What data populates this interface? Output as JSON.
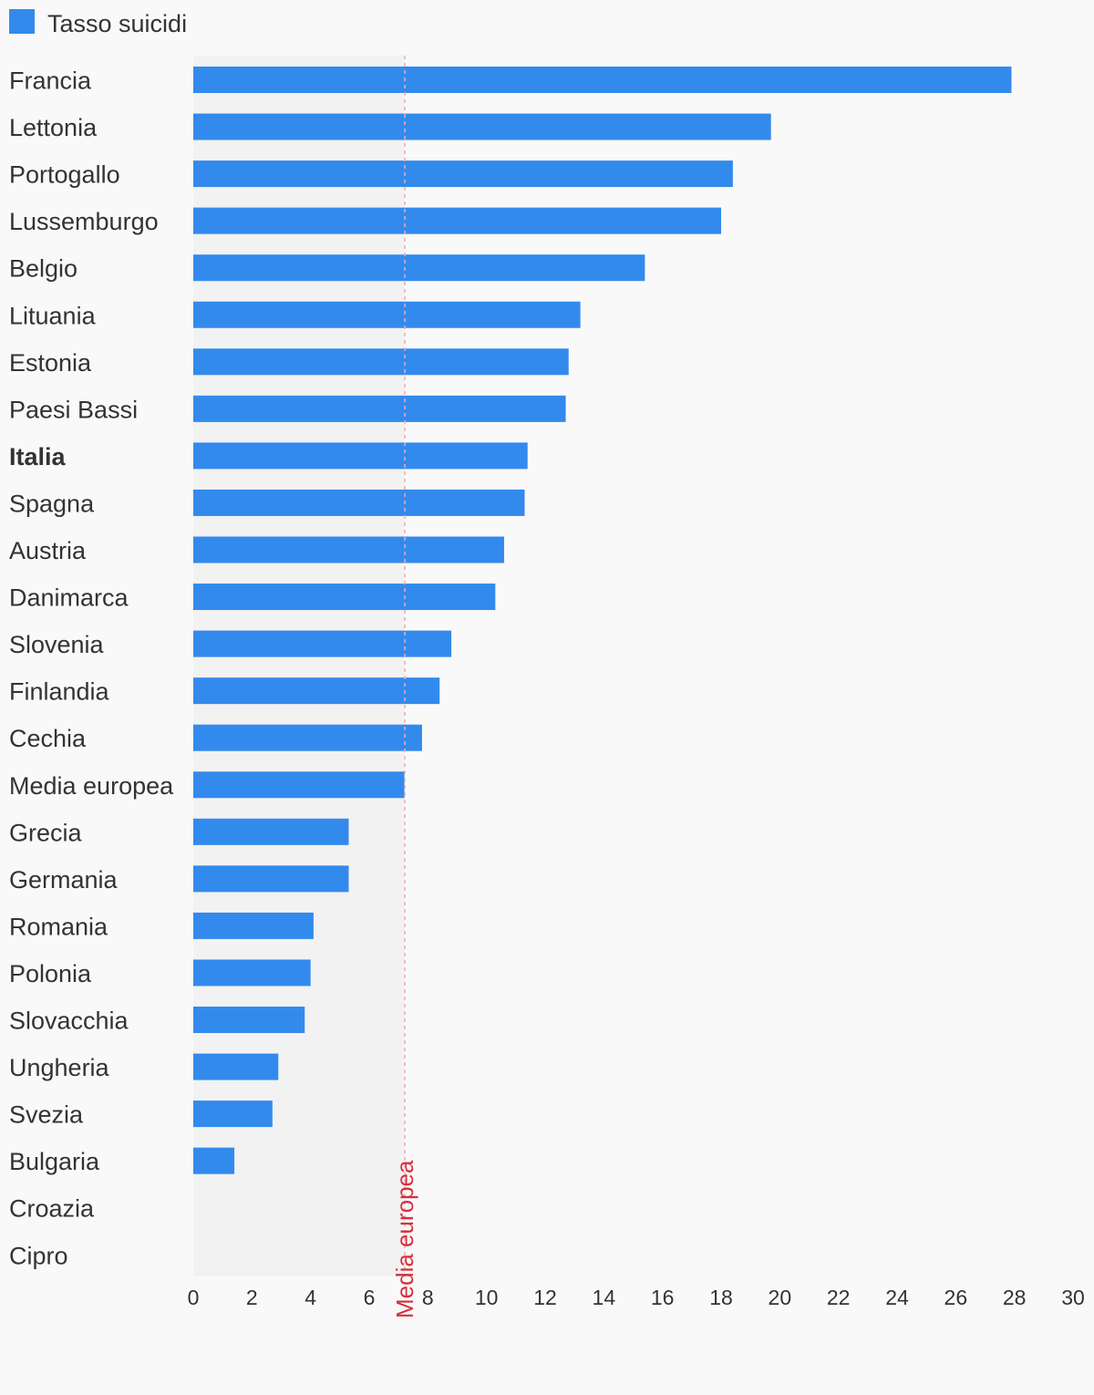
{
  "chart_data": {
    "type": "bar",
    "orientation": "horizontal",
    "legend": {
      "label": "Tasso suicidi",
      "position": "top-left"
    },
    "series": [
      {
        "name": "Tasso suicidi",
        "color": "#338aed",
        "values": [
          27.9,
          19.7,
          18.4,
          18.0,
          15.4,
          13.2,
          12.8,
          12.7,
          11.4,
          11.3,
          10.6,
          10.3,
          8.8,
          8.4,
          7.8,
          7.2,
          5.3,
          5.3,
          4.1,
          4.0,
          3.8,
          2.9,
          2.7,
          1.4,
          0,
          0
        ]
      }
    ],
    "categories": [
      "Francia",
      "Lettonia",
      "Portogallo",
      "Lussemburgo",
      "Belgio",
      "Lituania",
      "Estonia",
      "Paesi Bassi",
      "Italia",
      "Spagna",
      "Austria",
      "Danimarca",
      "Slovenia",
      "Finlandia",
      "Cechia",
      "Media europea",
      "Grecia",
      "Germania",
      "Romania",
      "Polonia",
      "Slovacchia",
      "Ungheria",
      "Svezia",
      "Bulgaria",
      "Croazia",
      "Cipro"
    ],
    "highlighted_category": "Italia",
    "xlim": [
      0,
      30
    ],
    "x_ticks": [
      0,
      2,
      4,
      6,
      8,
      10,
      12,
      14,
      16,
      18,
      20,
      22,
      24,
      26,
      28,
      30
    ],
    "reference_line": {
      "label": "Media europea",
      "value": 7.2,
      "color": "#d62f3c",
      "style": "dashed"
    },
    "shaded_region": {
      "from": 0,
      "to": 7.2,
      "color": "#f2f2f2"
    },
    "grid": false,
    "title": "",
    "xlabel": "",
    "ylabel": ""
  }
}
